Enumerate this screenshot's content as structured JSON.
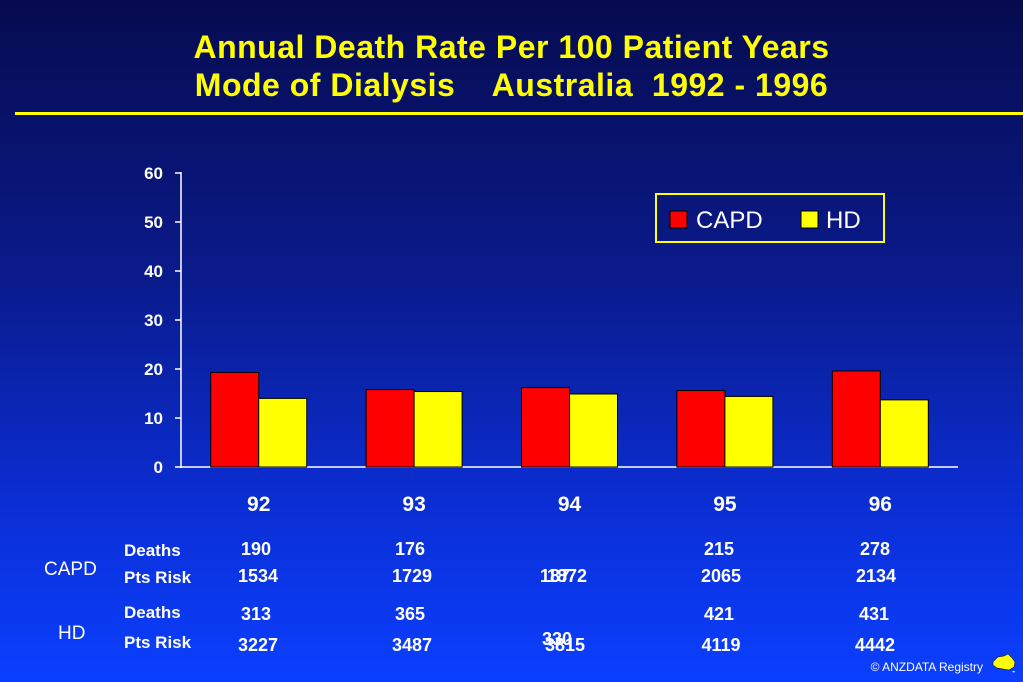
{
  "title": {
    "line1": "Annual Death Rate Per 100 Patient Years",
    "line2": "Mode of Dialysis    Australia  1992 - 1996"
  },
  "chart_data": {
    "type": "bar",
    "categories": [
      "92",
      "93",
      "94",
      "95",
      "96"
    ],
    "series": [
      {
        "name": "CAPD",
        "color": "#ff0000",
        "values": [
          19.3,
          15.8,
          16.2,
          15.6,
          19.6
        ]
      },
      {
        "name": "HD",
        "color": "#ffff00",
        "values": [
          14.0,
          15.4,
          14.9,
          14.4,
          13.7
        ]
      }
    ],
    "yticks": [
      "0",
      "10",
      "20",
      "30",
      "40",
      "50",
      "60"
    ],
    "ylim": [
      0,
      60
    ],
    "legend": "top-right",
    "grid": false
  },
  "table": {
    "groups": [
      {
        "name": "CAPD",
        "rows": [
          {
            "label": "Deaths",
            "values": [
              "190",
              "176",
              "",
              "215",
              "278"
            ]
          },
          {
            "label": "Pts Risk",
            "values": [
              "1534",
              "1729",
              "",
              "2065",
              "2134"
            ]
          }
        ]
      },
      {
        "name": "HD",
        "rows": [
          {
            "label": "Deaths",
            "values": [
              "313",
              "365",
              "",
              "421",
              "431"
            ]
          },
          {
            "label": "Pts Risk",
            "values": [
              "3227",
              "3487",
              "",
              "4119",
              "4442"
            ]
          }
        ]
      }
    ],
    "overlap_capd": [
      "187",
      "1872"
    ],
    "overlap_hd": [
      "330",
      "3815"
    ]
  },
  "footer": {
    "copyright": "© ANZDATA Registry"
  }
}
